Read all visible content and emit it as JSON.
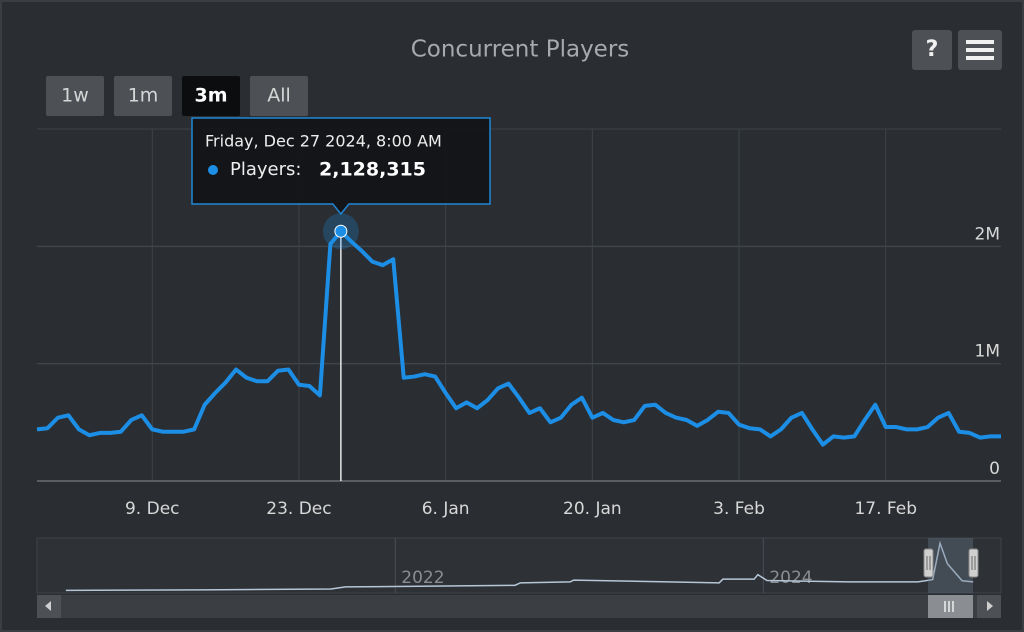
{
  "chart_data": {
    "type": "line",
    "title": "Concurrent Players",
    "help_button": "?",
    "range_buttons": [
      "1w",
      "1m",
      "3m",
      "All"
    ],
    "selected_range": "3m",
    "x": [
      "28. Nov",
      "29. Nov",
      "30. Nov",
      "1. Dec",
      "2. Dec",
      "3. Dec",
      "4. Dec",
      "5. Dec",
      "6. Dec",
      "7. Dec",
      "8. Dec",
      "9. Dec",
      "10. Dec",
      "11. Dec",
      "12. Dec",
      "13. Dec",
      "14. Dec",
      "15. Dec",
      "16. Dec",
      "17. Dec",
      "18. Dec",
      "19. Dec",
      "20. Dec",
      "21. Dec",
      "22. Dec",
      "23. Dec",
      "24. Dec",
      "25. Dec",
      "26. Dec",
      "27. Dec",
      "28. Dec",
      "29. Dec",
      "30. Dec",
      "31. Dec",
      "1. Jan",
      "2. Jan",
      "3. Jan",
      "4. Jan",
      "5. Jan",
      "6. Jan",
      "7. Jan",
      "8. Jan",
      "9. Jan",
      "10. Jan",
      "11. Jan",
      "12. Jan",
      "13. Jan",
      "14. Jan",
      "15. Jan",
      "16. Jan",
      "17. Jan",
      "18. Jan",
      "19. Jan",
      "20. Jan",
      "21. Jan",
      "22. Jan",
      "23. Jan",
      "24. Jan",
      "25. Jan",
      "26. Jan",
      "27. Jan",
      "28. Jan",
      "29. Jan",
      "30. Jan",
      "31. Jan",
      "1. Feb",
      "2. Feb",
      "3. Feb",
      "4. Feb",
      "5. Feb",
      "6. Feb",
      "7. Feb",
      "8. Feb",
      "9. Feb",
      "10. Feb",
      "11. Feb",
      "12. Feb",
      "13. Feb",
      "14. Feb",
      "15. Feb",
      "16. Feb",
      "17. Feb",
      "18. Feb",
      "19. Feb",
      "20. Feb",
      "21. Feb",
      "22. Feb",
      "23. Feb",
      "24. Feb",
      "25. Feb",
      "26. Feb",
      "27. Feb",
      "28. Feb"
    ],
    "series": [
      {
        "name": "Players",
        "color": "#1c8ee6",
        "values": [
          440000,
          450000,
          540000,
          560000,
          440000,
          390000,
          410000,
          410000,
          420000,
          520000,
          560000,
          440000,
          420000,
          420000,
          420000,
          440000,
          650000,
          750000,
          840000,
          950000,
          880000,
          850000,
          850000,
          940000,
          950000,
          820000,
          810000,
          730000,
          2020000,
          2128315,
          2040000,
          1960000,
          1870000,
          1840000,
          1890000,
          880000,
          890000,
          910000,
          890000,
          750000,
          620000,
          670000,
          620000,
          690000,
          790000,
          830000,
          710000,
          580000,
          620000,
          500000,
          540000,
          650000,
          710000,
          540000,
          580000,
          520000,
          500000,
          520000,
          640000,
          650000,
          580000,
          540000,
          520000,
          470000,
          520000,
          590000,
          580000,
          480000,
          450000,
          440000,
          380000,
          440000,
          540000,
          580000,
          440000,
          310000,
          380000,
          370000,
          380000,
          520000,
          650000,
          460000,
          460000,
          440000,
          440000,
          460000,
          540000,
          580000,
          420000,
          410000,
          370000,
          380000,
          380000
        ]
      }
    ],
    "xticks": [
      "9. Dec",
      "23. Dec",
      "6. Jan",
      "20. Jan",
      "3. Feb",
      "17. Feb"
    ],
    "ylim": [
      0,
      3000000
    ],
    "yticks": [
      0,
      {
        "value": 1000000,
        "label": "1M"
      },
      {
        "value": 2000000,
        "label": "2M"
      }
    ],
    "grid": true,
    "tooltip": {
      "title": "Friday, Dec 27 2024, 8:00 AM",
      "label": "Players:",
      "value": 2128315,
      "value_label": "2,128,315"
    },
    "navigator": {
      "x": [
        2020.21,
        2020.95,
        2021.65,
        2021.73,
        2022.65,
        2022.68,
        2022.95,
        2022.97,
        2023.76,
        2023.78,
        2023.95,
        2023.97,
        2024.02,
        2024.46,
        2024.84,
        2024.92,
        2024.96,
        2025.0,
        2025.08,
        2025.14
      ],
      "values": [
        30000,
        50000,
        90000,
        180000,
        250000,
        360000,
        400000,
        480000,
        360000,
        520000,
        520000,
        720000,
        460000,
        400000,
        400000,
        500000,
        2100000,
        1200000,
        450000,
        400000
      ],
      "xlim": [
        2020.2,
        2025.15
      ],
      "ylim": [
        0,
        2200000
      ],
      "xticks": [
        2022,
        2024
      ]
    }
  }
}
